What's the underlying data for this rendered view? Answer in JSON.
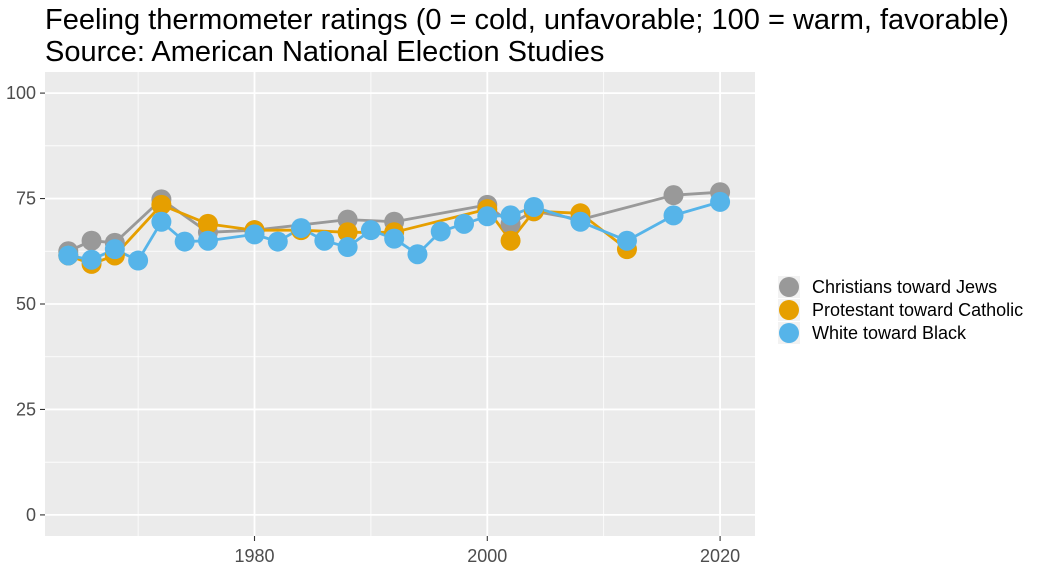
{
  "chart_data": {
    "type": "line",
    "title": "Feeling thermometer ratings (0 = cold, unfavorable; 100 = warm, favorable)",
    "subtitle": "Source: American National Election Studies",
    "xlabel": "",
    "ylabel": "",
    "xlim": [
      1962,
      2023
    ],
    "ylim": [
      -5,
      105
    ],
    "x_ticks": [
      1980,
      2000,
      2020
    ],
    "y_ticks": [
      0,
      25,
      50,
      75,
      100
    ],
    "grid": true,
    "legend_position": "right",
    "series": [
      {
        "name": "Christians toward Jews",
        "color": "#999999",
        "points": [
          [
            1964,
            62.5
          ],
          [
            1966,
            65
          ],
          [
            1968,
            64.5
          ],
          [
            1972,
            74.8
          ],
          [
            1976,
            67
          ],
          [
            1980,
            67.5
          ],
          [
            1988,
            70
          ],
          [
            1992,
            69.5
          ],
          [
            2000,
            73.5
          ],
          [
            2002,
            69
          ],
          [
            2004,
            72
          ],
          [
            2008,
            70
          ],
          [
            2016,
            75.8
          ],
          [
            2020,
            76.5
          ]
        ]
      },
      {
        "name": "Protestant toward Catholic",
        "color": "#E69F00",
        "points": [
          [
            1964,
            61.5
          ],
          [
            1966,
            59.5
          ],
          [
            1968,
            61.5
          ],
          [
            1972,
            73.5
          ],
          [
            1976,
            69
          ],
          [
            1980,
            67.5
          ],
          [
            1984,
            67.5
          ],
          [
            1988,
            67
          ],
          [
            1992,
            67
          ],
          [
            2000,
            72.5
          ],
          [
            2002,
            65
          ],
          [
            2004,
            72
          ],
          [
            2008,
            71.5
          ],
          [
            2012,
            63
          ]
        ]
      },
      {
        "name": "White toward Black",
        "color": "#56B4E9",
        "points": [
          [
            1964,
            61.5
          ],
          [
            1966,
            60.5
          ],
          [
            1968,
            63
          ],
          [
            1970,
            60.3
          ],
          [
            1972,
            69.5
          ],
          [
            1974,
            64.8
          ],
          [
            1976,
            65
          ],
          [
            1980,
            66.5
          ],
          [
            1982,
            64.8
          ],
          [
            1984,
            68
          ],
          [
            1986,
            65
          ],
          [
            1988,
            63.5
          ],
          [
            1990,
            67.5
          ],
          [
            1992,
            65.5
          ],
          [
            1994,
            61.8
          ],
          [
            1996,
            67.2
          ],
          [
            1998,
            69
          ],
          [
            2000,
            70.8
          ],
          [
            2002,
            71
          ],
          [
            2004,
            73
          ],
          [
            2008,
            69.5
          ],
          [
            2012,
            65
          ],
          [
            2016,
            71
          ],
          [
            2020,
            74.2
          ]
        ]
      }
    ]
  }
}
